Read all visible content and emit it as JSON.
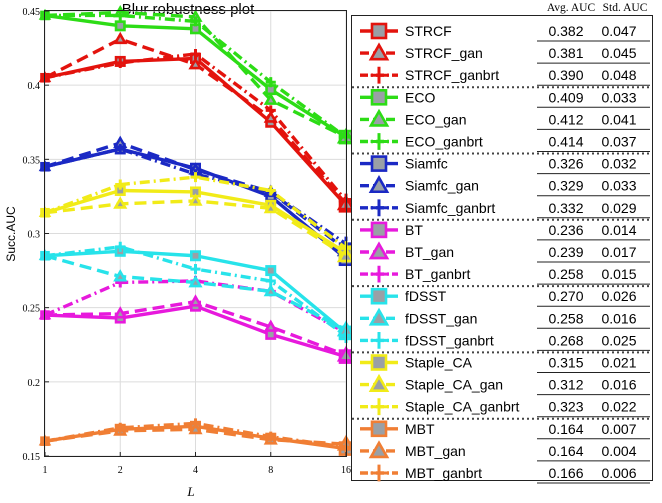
{
  "chart_data": {
    "type": "line",
    "title": "Blur robustness plot",
    "xlabel": "L",
    "ylabel": "Succ.AUC",
    "x": [
      1,
      2,
      4,
      8,
      16
    ],
    "x_scale": "log2",
    "xlim": [
      1,
      16
    ],
    "ylim": [
      0.15,
      0.45
    ],
    "y_ticks": [
      "0.15",
      "0.2",
      "0.25",
      "0.3",
      "0.35",
      "0.4",
      "0.45"
    ],
    "x_ticks": [
      "1",
      "2",
      "4",
      "8",
      "16"
    ],
    "grid": true,
    "legend_placement": "right",
    "legend_headers": {
      "avg": "Avg. AUC",
      "std": "Std. AUC"
    },
    "series": [
      {
        "name": "STRCF",
        "color": "#e3130d",
        "marker": "square",
        "line": "solid",
        "avg": "0.382",
        "std": "0.047",
        "values": [
          0.405,
          0.416,
          0.418,
          0.375,
          0.319
        ]
      },
      {
        "name": "STRCF_gan",
        "color": "#e3130d",
        "marker": "triangle",
        "line": "dashed",
        "avg": "0.381",
        "std": "0.045",
        "values": [
          0.405,
          0.431,
          0.414,
          0.378,
          0.32
        ]
      },
      {
        "name": "STRCF_ganbrt",
        "color": "#e3130d",
        "marker": "plus",
        "line": "dashdot",
        "avg": "0.390",
        "std": "0.048",
        "values": [
          0.405,
          0.415,
          0.421,
          0.383,
          0.322
        ]
      },
      {
        "name": "ECO",
        "color": "#2ddc16",
        "marker": "square",
        "line": "solid",
        "avg": "0.409",
        "std": "0.033",
        "values": [
          0.447,
          0.44,
          0.438,
          0.397,
          0.365
        ]
      },
      {
        "name": "ECO_gan",
        "color": "#2ddc16",
        "marker": "triangle",
        "line": "dashed",
        "avg": "0.412",
        "std": "0.041",
        "values": [
          0.447,
          0.449,
          0.446,
          0.39,
          0.365
        ]
      },
      {
        "name": "ECO_ganbrt",
        "color": "#2ddc16",
        "marker": "plus",
        "line": "dashdot",
        "avg": "0.414",
        "std": "0.037",
        "values": [
          0.447,
          0.447,
          0.443,
          0.402,
          0.365
        ]
      },
      {
        "name": "Siamfc",
        "color": "#1b29c4",
        "marker": "square",
        "line": "solid",
        "avg": "0.326",
        "std": "0.032",
        "values": [
          0.345,
          0.357,
          0.344,
          0.325,
          0.283
        ]
      },
      {
        "name": "Siamfc_gan",
        "color": "#1b29c4",
        "marker": "triangle",
        "line": "dashed",
        "avg": "0.329",
        "std": "0.033",
        "values": [
          0.345,
          0.361,
          0.343,
          0.328,
          0.289
        ]
      },
      {
        "name": "Siamfc_ganbrt",
        "color": "#1b29c4",
        "marker": "plus",
        "line": "dashdot",
        "avg": "0.332",
        "std": "0.029",
        "values": [
          0.345,
          0.357,
          0.34,
          0.328,
          0.293
        ]
      },
      {
        "name": "BT",
        "color": "#e719dc",
        "marker": "square",
        "line": "solid",
        "avg": "0.236",
        "std": "0.014",
        "values": [
          0.245,
          0.243,
          0.251,
          0.232,
          0.217
        ]
      },
      {
        "name": "BT_gan",
        "color": "#e719dc",
        "marker": "triangle",
        "line": "dashed",
        "avg": "0.239",
        "std": "0.017",
        "values": [
          0.245,
          0.246,
          0.254,
          0.237,
          0.218
        ]
      },
      {
        "name": "BT_ganbrt",
        "color": "#e719dc",
        "marker": "plus",
        "line": "dashdot",
        "avg": "0.258",
        "std": "0.015",
        "values": [
          0.245,
          0.267,
          0.268,
          0.261,
          0.233
        ]
      },
      {
        "name": "fDSST",
        "color": "#27e3ea",
        "marker": "square",
        "line": "solid",
        "avg": "0.270",
        "std": "0.026",
        "values": [
          0.285,
          0.288,
          0.285,
          0.275,
          0.233
        ]
      },
      {
        "name": "fDSST_gan",
        "color": "#27e3ea",
        "marker": "triangle",
        "line": "dashed",
        "avg": "0.258",
        "std": "0.016",
        "values": [
          0.285,
          0.271,
          0.267,
          0.261,
          0.235
        ]
      },
      {
        "name": "fDSST_ganbrt",
        "color": "#27e3ea",
        "marker": "plus",
        "line": "dashdot",
        "avg": "0.268",
        "std": "0.025",
        "values": [
          0.285,
          0.291,
          0.276,
          0.268,
          0.231
        ]
      },
      {
        "name": "Staple_CA",
        "color": "#f1eb18",
        "marker": "square",
        "line": "solid",
        "avg": "0.315",
        "std": "0.021",
        "values": [
          0.314,
          0.329,
          0.328,
          0.319,
          0.287
        ]
      },
      {
        "name": "Staple_CA_gan",
        "color": "#f1eb18",
        "marker": "triangle",
        "line": "dashed",
        "avg": "0.312",
        "std": "0.016",
        "values": [
          0.314,
          0.32,
          0.322,
          0.317,
          0.285
        ]
      },
      {
        "name": "Staple_CA_ganbrt",
        "color": "#f1eb18",
        "marker": "plus",
        "line": "dashdot",
        "avg": "0.323",
        "std": "0.022",
        "values": [
          0.314,
          0.333,
          0.338,
          0.329,
          0.29
        ]
      },
      {
        "name": "MBT",
        "color": "#f07e34",
        "marker": "square",
        "line": "solid",
        "avg": "0.164",
        "std": "0.007",
        "values": [
          0.16,
          0.168,
          0.17,
          0.162,
          0.155
        ]
      },
      {
        "name": "MBT_gan",
        "color": "#f07e34",
        "marker": "triangle",
        "line": "dashed",
        "avg": "0.164",
        "std": "0.004",
        "values": [
          0.16,
          0.167,
          0.168,
          0.161,
          0.158
        ]
      },
      {
        "name": "MBT_ganbrt",
        "color": "#f07e34",
        "marker": "plus",
        "line": "dashdot",
        "avg": "0.166",
        "std": "0.006",
        "values": [
          0.16,
          0.169,
          0.172,
          0.163,
          0.156
        ]
      }
    ]
  }
}
